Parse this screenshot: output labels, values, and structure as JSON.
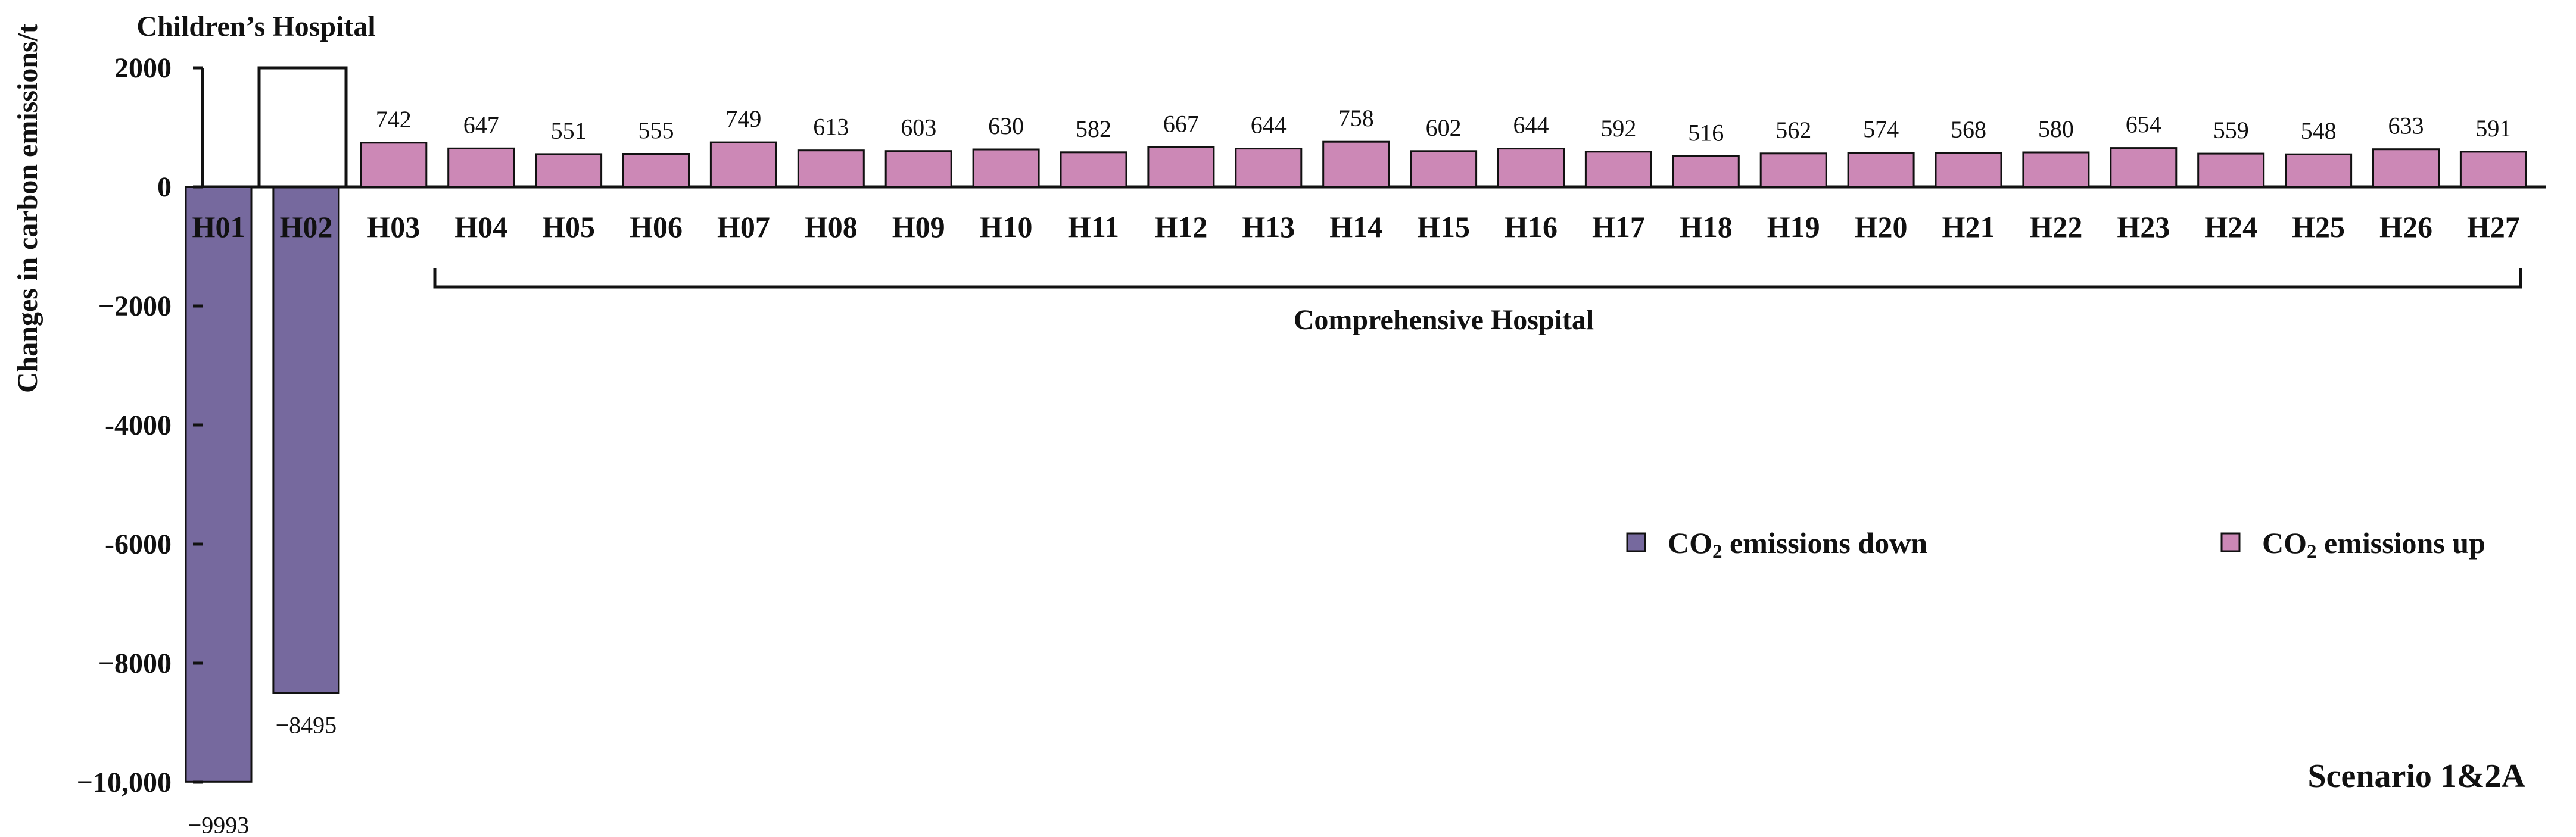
{
  "chart_data": {
    "type": "bar",
    "ylabel": "Changes in carbon emissions/t",
    "ylim": [
      -10000,
      2000
    ],
    "yticks": [
      {
        "value": 2000,
        "label": "2000"
      },
      {
        "value": 0,
        "label": "0"
      },
      {
        "value": -2000,
        "label": "−2000"
      },
      {
        "value": -4000,
        "label": "-4000"
      },
      {
        "value": -6000,
        "label": "-6000"
      },
      {
        "value": -8000,
        "label": "−8000"
      },
      {
        "value": -10000,
        "label": "−10,000"
      }
    ],
    "categories": [
      "H01",
      "H02",
      "H03",
      "H04",
      "H05",
      "H06",
      "H07",
      "H08",
      "H09",
      "H10",
      "H11",
      "H12",
      "H13",
      "H14",
      "H15",
      "H16",
      "H17",
      "H18",
      "H19",
      "H20",
      "H21",
      "H22",
      "H23",
      "H24",
      "H25",
      "H26",
      "H27"
    ],
    "values": [
      -9993,
      -8495,
      742,
      647,
      551,
      555,
      749,
      613,
      603,
      630,
      582,
      667,
      644,
      758,
      602,
      644,
      592,
      516,
      562,
      574,
      568,
      580,
      654,
      559,
      548,
      633,
      591
    ],
    "value_labels": [
      "−9993",
      "−8495",
      "742",
      "647",
      "551",
      "555",
      "749",
      "613",
      "603",
      "630",
      "582",
      "667",
      "644",
      "758",
      "602",
      "644",
      "592",
      "516",
      "562",
      "574",
      "568",
      "580",
      "654",
      "559",
      "548",
      "633",
      "591"
    ],
    "series": [
      {
        "name": "CO₂ emissions down",
        "color": "#76699e"
      },
      {
        "name": "CO₂ emissions up",
        "color": "#cc88b6"
      }
    ],
    "legend": {
      "placement": "right",
      "down_prefix": "CO",
      "down_sub": "2",
      "down_suffix": " emissions down",
      "up_prefix": "CO",
      "up_sub": "2",
      "up_suffix": " emissions up"
    },
    "annotations": {
      "children_group": "Children’s Hospital",
      "comprehensive_group": "Comprehensive Hospital",
      "scenario": "Scenario 1&2A"
    },
    "grid": false
  }
}
